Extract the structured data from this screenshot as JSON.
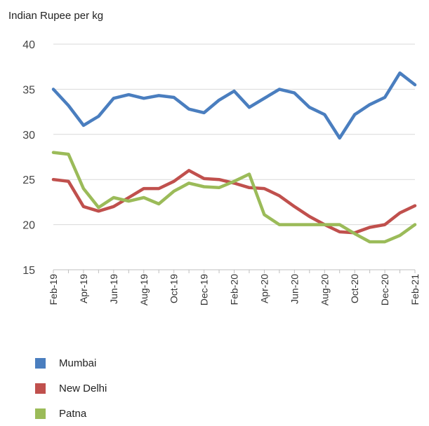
{
  "chart_data": {
    "type": "line",
    "ylabel": "Indian Rupee per kg",
    "ylim": [
      15,
      40
    ],
    "yticks": [
      15,
      20,
      25,
      30,
      35,
      40
    ],
    "grid": "horizontal",
    "legend_position": "bottom-left",
    "x": [
      "Feb-19",
      "Mar-19",
      "Apr-19",
      "May-19",
      "Jun-19",
      "Jul-19",
      "Aug-19",
      "Sep-19",
      "Oct-19",
      "Nov-19",
      "Dec-19",
      "Jan-20",
      "Feb-20",
      "Mar-20",
      "Apr-20",
      "May-20",
      "Jun-20",
      "Jul-20",
      "Aug-20",
      "Sep-20",
      "Oct-20",
      "Nov-20",
      "Dec-20",
      "Jan-21",
      "Feb-21"
    ],
    "xtick_labels": [
      "Feb-19",
      "Apr-19",
      "Jun-19",
      "Aug-19",
      "Oct-19",
      "Dec-19",
      "Feb-20",
      "Apr-20",
      "Jun-20",
      "Aug-20",
      "Oct-20",
      "Dec-20",
      "Feb-21"
    ],
    "series": [
      {
        "name": "Mumbai",
        "color": "#4a7ebf",
        "values": [
          35,
          33.2,
          31,
          32,
          34,
          34.4,
          34,
          34.3,
          34.1,
          32.8,
          32.4,
          33.8,
          34.8,
          33,
          34,
          35,
          34.6,
          33,
          32.2,
          29.6,
          32.2,
          33.3,
          34.1,
          36.8,
          35.5
        ]
      },
      {
        "name": "New Delhi",
        "color": "#c0504d",
        "values": [
          25,
          24.8,
          22,
          21.5,
          22,
          23,
          24,
          24,
          24.8,
          26,
          25.1,
          25,
          24.6,
          24.1,
          24,
          23.2,
          22,
          20.9,
          20,
          19.2,
          19.1,
          19.7,
          20,
          21.3,
          22.1
        ]
      },
      {
        "name": "Patna",
        "color": "#9bbb59",
        "values": [
          28,
          27.8,
          24,
          21.9,
          23,
          22.6,
          23,
          22.3,
          23.7,
          24.6,
          24.2,
          24.1,
          24.8,
          25.6,
          21.1,
          20,
          20,
          20,
          20,
          20,
          19,
          18.1,
          18.1,
          18.8,
          20
        ]
      }
    ]
  }
}
